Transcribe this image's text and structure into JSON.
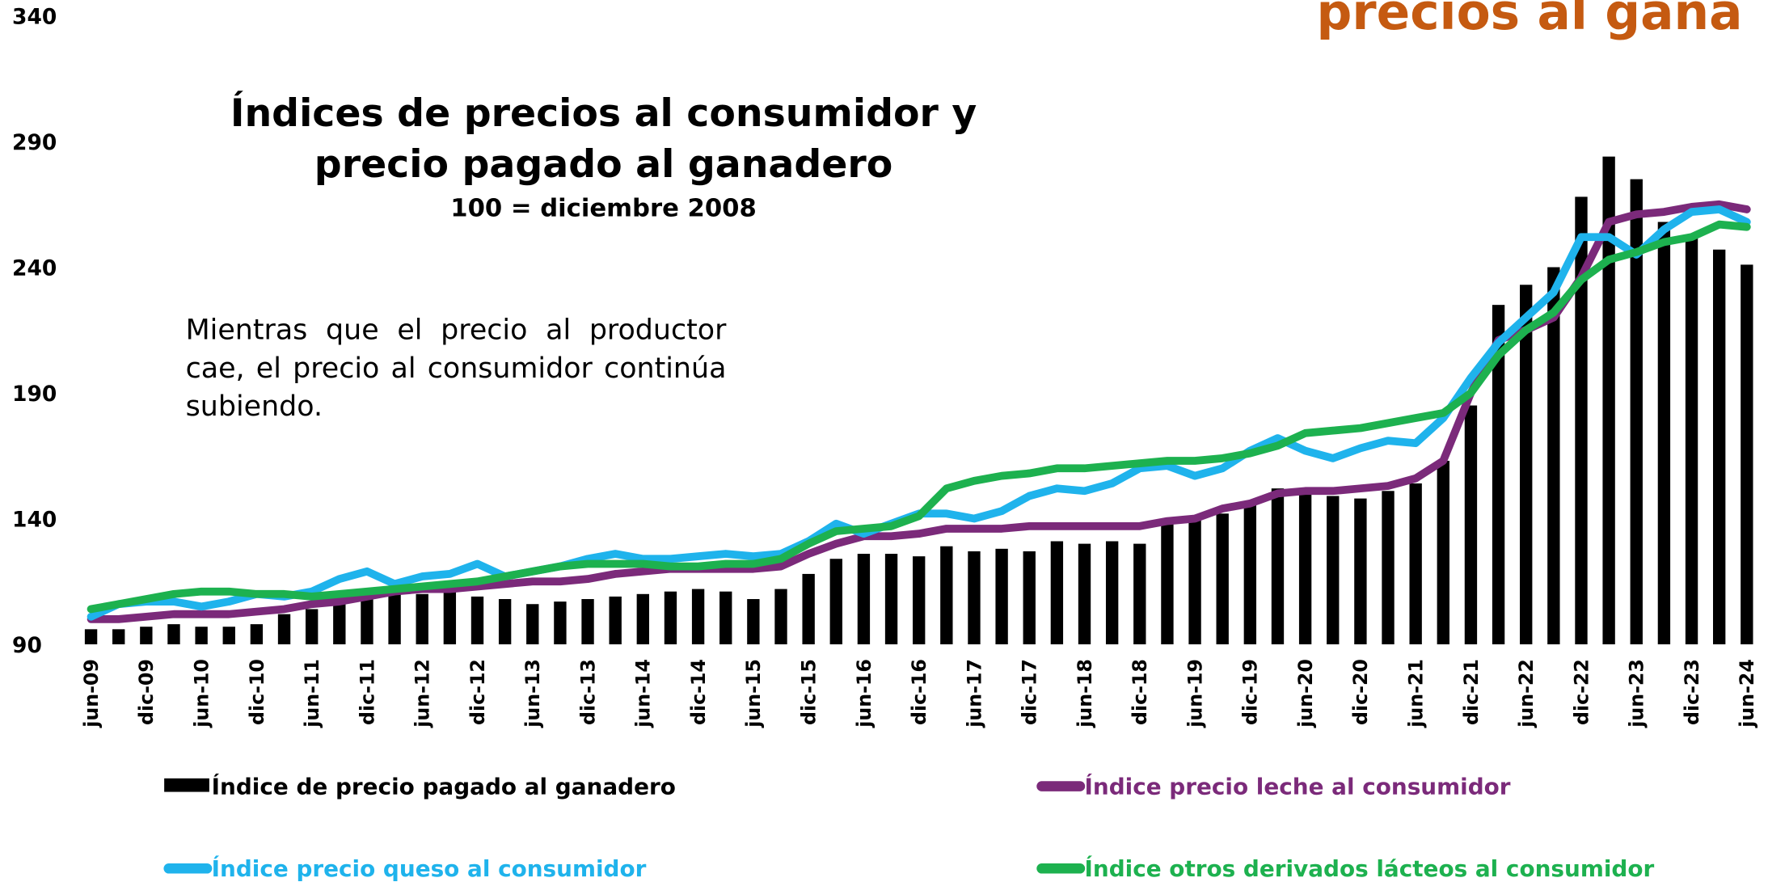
{
  "chart_data": {
    "type": "combo",
    "title": [
      "Índices de precios al consumidor y",
      "precio pagado al ganadero"
    ],
    "subtitle": "100 = diciembre 2008",
    "overlay_title": "precios al gana",
    "annotation": "Mientras que el precio al productor cae, el precio al consumidor continúa subiendo.",
    "categories": [
      "jun-09",
      null,
      "dic-09",
      null,
      "jun-10",
      null,
      "dic-10",
      null,
      "jun-11",
      null,
      "dic-11",
      null,
      "jun-12",
      null,
      "dic-12",
      null,
      "jun-13",
      null,
      "dic-13",
      null,
      "jun-14",
      null,
      "dic-14",
      null,
      "jun-15",
      null,
      "dic-15",
      null,
      "jun-16",
      null,
      "dic-16",
      null,
      "jun-17",
      null,
      "dic-17",
      null,
      "jun-18",
      null,
      "dic-18",
      null,
      "jun-19",
      null,
      "dic-19",
      null,
      "jun-20",
      null,
      "dic-20",
      null,
      "jun-21",
      null,
      "dic-21",
      null,
      "jun-22",
      null,
      "dic-22",
      null,
      "jun-23",
      null,
      "dic-23",
      null,
      "jun-24"
    ],
    "series": [
      {
        "name": "Índice de precio pagado al ganadero",
        "type": "bar",
        "color": "#000000",
        "values": [
          96,
          96,
          97,
          98,
          97,
          97,
          98,
          102,
          104,
          107,
          110,
          111,
          110,
          112,
          109,
          108,
          106,
          107,
          108,
          109,
          110,
          111,
          112,
          111,
          108,
          112,
          118,
          124,
          126,
          126,
          125,
          129,
          127,
          128,
          127,
          131,
          130,
          131,
          130,
          138,
          140,
          142,
          146,
          152,
          150,
          149,
          148,
          151,
          154,
          163,
          185,
          225,
          233,
          240,
          268,
          284,
          275,
          258,
          253,
          247,
          241
        ]
      },
      {
        "name": "Índice precio leche al consumidor",
        "type": "line",
        "color": "#7b2a7a",
        "values": [
          100,
          100,
          101,
          102,
          102,
          102,
          103,
          104,
          106,
          107,
          109,
          111,
          112,
          112,
          113,
          114,
          115,
          115,
          116,
          118,
          119,
          120,
          120,
          120,
          120,
          121,
          126,
          130,
          133,
          133,
          134,
          136,
          136,
          136,
          137,
          137,
          137,
          137,
          137,
          139,
          140,
          144,
          146,
          150,
          151,
          151,
          152,
          153,
          156,
          163,
          190,
          211,
          215,
          220,
          236,
          258,
          261,
          262,
          264,
          265,
          263
        ]
      },
      {
        "name": "Índice precio queso al consumidor",
        "type": "line",
        "color": "#1fb3ec",
        "values": [
          101,
          106,
          107,
          107,
          105,
          107,
          110,
          109,
          111,
          116,
          119,
          114,
          117,
          118,
          122,
          117,
          119,
          121,
          124,
          126,
          124,
          124,
          125,
          126,
          125,
          126,
          131,
          138,
          134,
          138,
          142,
          142,
          140,
          143,
          149,
          152,
          151,
          154,
          160,
          161,
          157,
          160,
          167,
          172,
          167,
          164,
          168,
          171,
          170,
          180,
          196,
          210,
          220,
          230,
          252,
          252,
          245,
          255,
          262,
          263,
          258
        ]
      },
      {
        "name": "Índice otros derivados lácteos al consumidor",
        "type": "line",
        "color": "#1db14f",
        "values": [
          104,
          106,
          108,
          110,
          111,
          111,
          110,
          110,
          109,
          110,
          111,
          112,
          113,
          114,
          115,
          117,
          119,
          121,
          122,
          122,
          122,
          121,
          121,
          122,
          122,
          124,
          130,
          135,
          136,
          137,
          141,
          152,
          155,
          157,
          158,
          160,
          160,
          161,
          162,
          163,
          163,
          164,
          166,
          169,
          174,
          175,
          176,
          178,
          180,
          182,
          190,
          205,
          215,
          222,
          235,
          243,
          246,
          250,
          252,
          257,
          256
        ]
      }
    ],
    "ylim": [
      90,
      340
    ],
    "yticks": [
      90,
      140,
      190,
      240,
      290,
      340
    ],
    "grid": false,
    "legend": "bottom"
  }
}
